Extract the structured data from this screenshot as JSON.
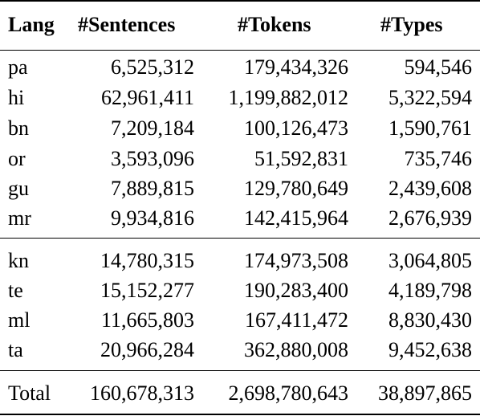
{
  "table": {
    "headers": [
      "Lang",
      "#Sentences",
      "#Tokens",
      "#Types"
    ],
    "groups": [
      [
        [
          "pa",
          "6,525,312",
          "179,434,326",
          "594,546"
        ],
        [
          "hi",
          "62,961,411",
          "1,199,882,012",
          "5,322,594"
        ],
        [
          "bn",
          "7,209,184",
          "100,126,473",
          "1,590,761"
        ],
        [
          "or",
          "3,593,096",
          "51,592,831",
          "735,746"
        ],
        [
          "gu",
          "7,889,815",
          "129,780,649",
          "2,439,608"
        ],
        [
          "mr",
          "9,934,816",
          "142,415,964",
          "2,676,939"
        ]
      ],
      [
        [
          "kn",
          "14,780,315",
          "174,973,508",
          "3,064,805"
        ],
        [
          "te",
          "15,152,277",
          "190,283,400",
          "4,189,798"
        ],
        [
          "ml",
          "11,665,803",
          "167,411,472",
          "8,830,430"
        ],
        [
          "ta",
          "20,966,284",
          "362,880,008",
          "9,452,638"
        ]
      ]
    ],
    "total": [
      "Total",
      "160,678,313",
      "2,698,780,643",
      "38,897,865"
    ]
  }
}
